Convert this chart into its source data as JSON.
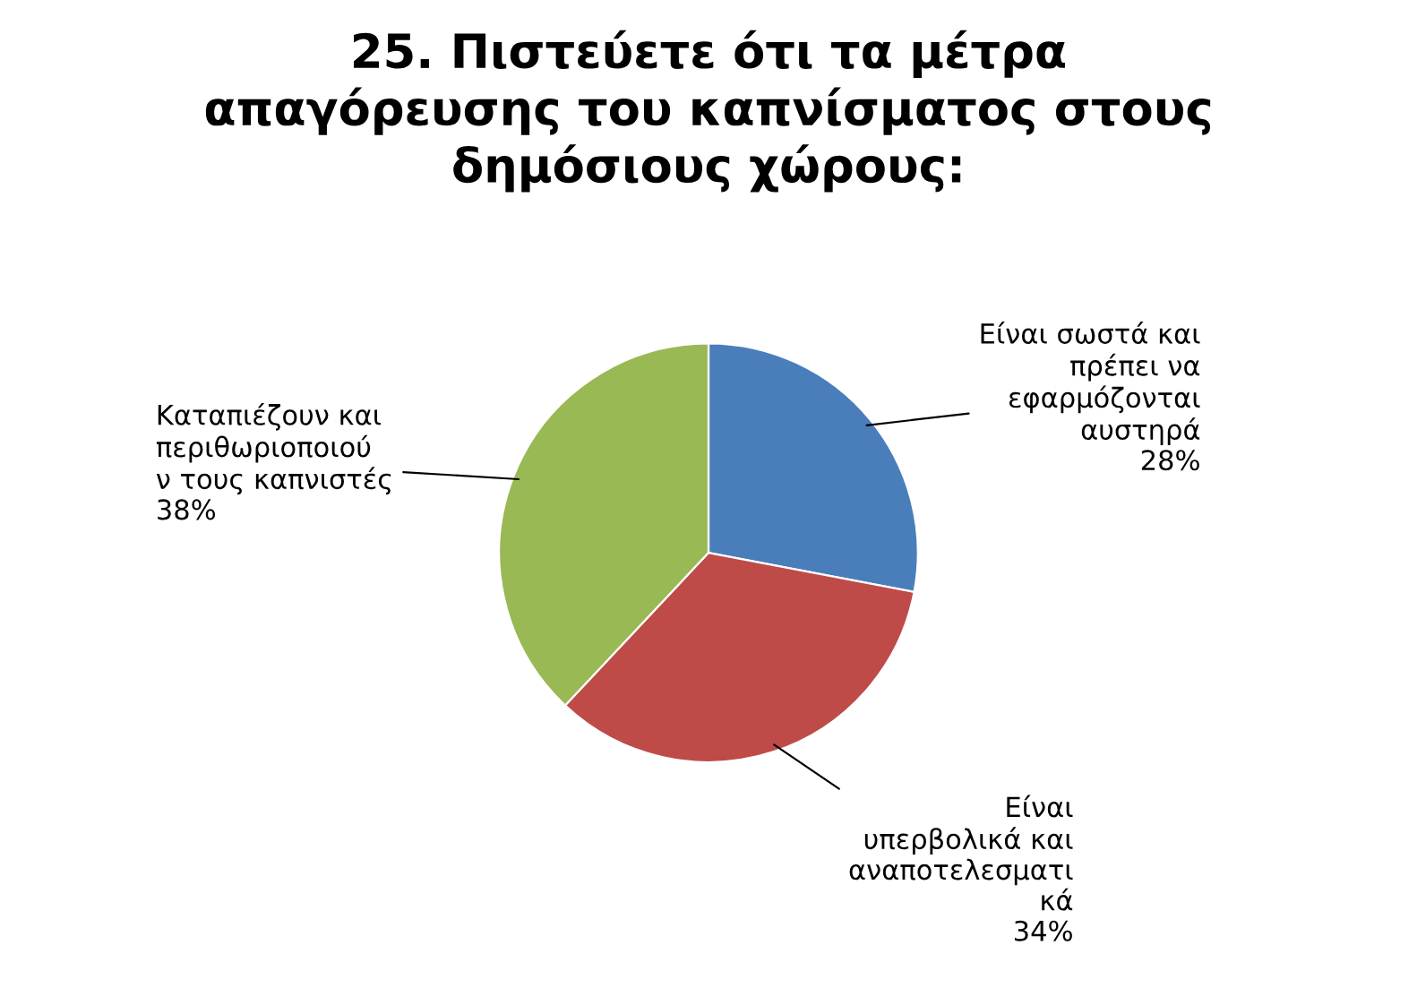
{
  "chart_data": {
    "type": "pie",
    "title": "25. Πιστεύετε ότι τα μέτρα\nαπαγόρευσης του καπνίσματος στους\nδημόσιους χώρους:",
    "categories": [
      "Είναι σωστά και\nπρέπει να\nεφαρμόζονται\nαυστηρά",
      "Είναι\nυπερβολικά και\nαναποτελεσματι\nκά",
      "Καταπιέζουν και\nπεριθωριοποιού\nν τους καπνιστές"
    ],
    "values": [
      28,
      34,
      38
    ],
    "colors": [
      "#4a7ebb",
      "#be4b48",
      "#98b954"
    ],
    "value_labels": [
      "28%",
      "34%",
      "38%"
    ],
    "legend": false
  }
}
